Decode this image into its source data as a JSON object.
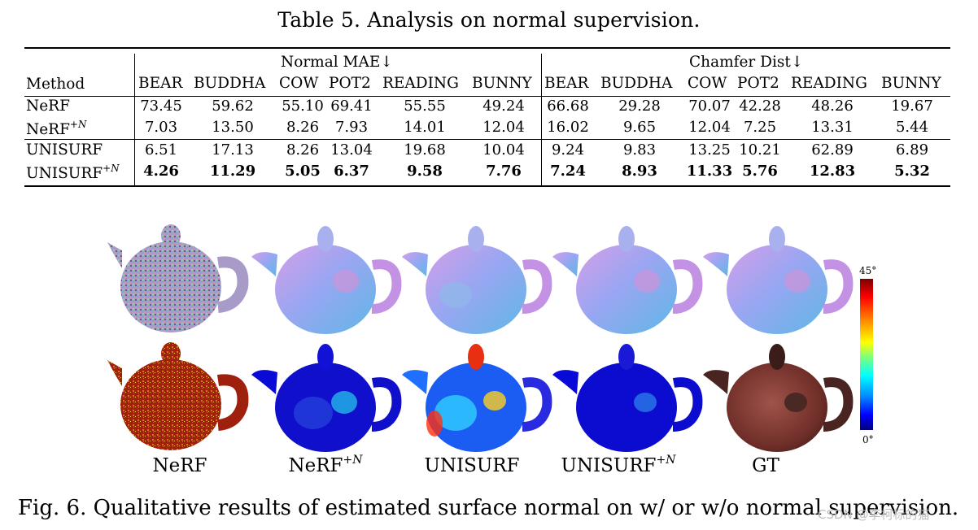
{
  "table": {
    "caption": "Table 5. Analysis on normal supervision.",
    "group_headers": [
      "Normal MAE↓",
      "Chamfer Dist↓"
    ],
    "method_header": "Method",
    "columns": [
      "BEAR",
      "BUDDHA",
      "COW",
      "POT2",
      "READING",
      "BUNNY"
    ],
    "rows": [
      {
        "method": "NeRF",
        "sup": "",
        "values": [
          "73.45",
          "59.62",
          "55.10",
          "69.41",
          "55.55",
          "49.24",
          "66.68",
          "29.28",
          "70.07",
          "42.28",
          "48.26",
          "19.67"
        ],
        "bold": false
      },
      {
        "method": "NeRF",
        "sup": "+N",
        "values": [
          "7.03",
          "13.50",
          "8.26",
          "7.93",
          "14.01",
          "12.04",
          "16.02",
          "9.65",
          "12.04",
          "7.25",
          "13.31",
          "5.44"
        ],
        "bold": false
      },
      {
        "method": "UNISURF",
        "sup": "",
        "values": [
          "6.51",
          "17.13",
          "8.26",
          "13.04",
          "19.68",
          "10.04",
          "9.24",
          "9.83",
          "13.25",
          "10.21",
          "62.89",
          "6.89"
        ],
        "bold": false
      },
      {
        "method": "UNISURF",
        "sup": "+N",
        "values": [
          "4.26",
          "11.29",
          "5.05",
          "6.37",
          "9.58",
          "7.76",
          "7.24",
          "8.93",
          "11.33",
          "5.76",
          "12.83",
          "5.32"
        ],
        "bold": true
      }
    ]
  },
  "figure": {
    "column_labels": [
      {
        "text": "NeRF",
        "sup": ""
      },
      {
        "text": "NeRF",
        "sup": "+N"
      },
      {
        "text": "UNISURF",
        "sup": ""
      },
      {
        "text": "UNISURF",
        "sup": "+N"
      },
      {
        "text": "GT",
        "sup": ""
      }
    ],
    "colorbar": {
      "max_label": "45°",
      "min_label": "0°"
    },
    "caption": "Fig. 6. Qualitative results of estimated surface normal on w/ or w/o normal supervision.",
    "watermark": "CSDN @李柯标的猫"
  }
}
